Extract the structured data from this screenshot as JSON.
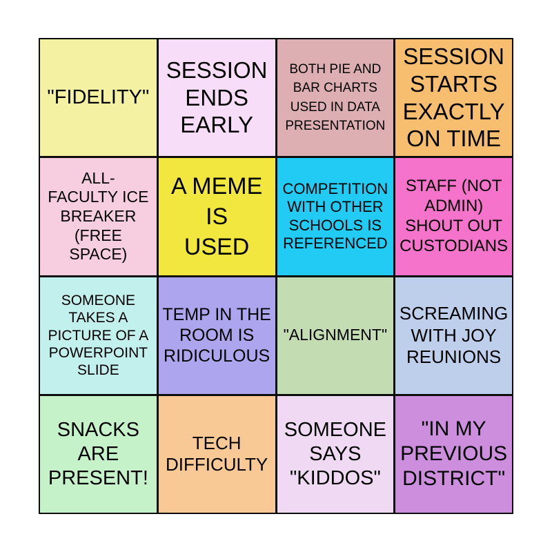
{
  "card": {
    "rows": 4,
    "cols": 4,
    "grid_line_color": "#0d0d0d",
    "text_color": "#000000",
    "page_background": "#ffffff",
    "cells": [
      {
        "text": "\"FIDELITY\"",
        "bg": "#F4F2A2"
      },
      {
        "text": "SESSION\nENDS\nEARLY",
        "bg": "#F8DDF8"
      },
      {
        "text": "BOTH PIE AND\nBAR CHARTS\nUSED IN DATA\nPRESENTATION",
        "bg": "#DDAEB2"
      },
      {
        "text": "SESSION\nSTARTS\nEXACTLY\nON TIME",
        "bg": "#F6BE6E"
      },
      {
        "text": "ALL-\nFACULTY ICE\nBREAKER\n(FREE\nSPACE)",
        "bg": "#F6CEDF"
      },
      {
        "text": "A MEME\nIS\nUSED",
        "bg": "#F2E73E"
      },
      {
        "text": "COMPETITION\nWITH OTHER\nSCHOOLS IS\nREFERENCED",
        "bg": "#21CBF4"
      },
      {
        "text": "STAFF (NOT\nADMIN)\nSHOUT OUT\nCUSTODIANS",
        "bg": "#F673CB"
      },
      {
        "text": "SOMEONE\nTAKES A\nPICTURE OF A\nPOWERPOINT\nSLIDE",
        "bg": "#C2F0EC"
      },
      {
        "text": "TEMP IN THE\nROOM IS\nRIDICULOUS",
        "bg": "#ADA6EE"
      },
      {
        "text": "\"ALIGNMENT\"",
        "bg": "#C3DCB1"
      },
      {
        "text": "SCREAMING\nWITH JOY\nREUNIONS",
        "bg": "#BECFEC"
      },
      {
        "text": "SNACKS\nARE\nPRESENT!",
        "bg": "#C5F2C8"
      },
      {
        "text": "TECH\nDIFFICULTY",
        "bg": "#F8C994"
      },
      {
        "text": "SOMEONE\nSAYS\n\"KIDDOS\"",
        "bg": "#EFD9F3"
      },
      {
        "text": "\"IN MY\nPREVIOUS\nDISTRICT\"",
        "bg": "#CD8FDD"
      }
    ]
  }
}
